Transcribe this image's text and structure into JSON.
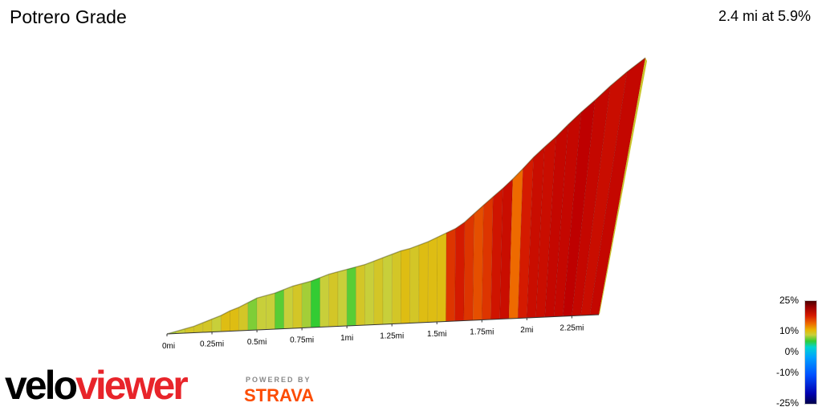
{
  "title": "Potrero Grade",
  "summary": "2.4 mi at 5.9%",
  "chart_data": {
    "type": "area",
    "title": "",
    "xlabel": "",
    "ylabel": "",
    "x_ticks": [
      "0mi",
      "0.25mi",
      "0.5mi",
      "0.75mi",
      "1mi",
      "1.25mi",
      "1.5mi",
      "1.75mi",
      "2mi",
      "2.25mi"
    ],
    "x": [
      0,
      0.05,
      0.1,
      0.15,
      0.2,
      0.25,
      0.3,
      0.35,
      0.4,
      0.45,
      0.5,
      0.55,
      0.6,
      0.65,
      0.7,
      0.75,
      0.8,
      0.85,
      0.9,
      0.95,
      1.0,
      1.05,
      1.1,
      1.15,
      1.2,
      1.25,
      1.3,
      1.35,
      1.4,
      1.45,
      1.5,
      1.55,
      1.6,
      1.65,
      1.7,
      1.75,
      1.8,
      1.85,
      1.9,
      1.95,
      2.0,
      2.05,
      2.1,
      2.15,
      2.2,
      2.25,
      2.3,
      2.35,
      2.4
    ],
    "elevation": [
      0,
      2,
      4,
      6,
      9,
      12,
      15,
      19,
      22,
      26,
      30,
      32,
      34,
      37,
      40,
      42,
      44,
      47,
      50,
      52,
      54,
      56,
      58,
      61,
      64,
      67,
      70,
      72,
      75,
      78,
      82,
      86,
      90,
      96,
      104,
      112,
      120,
      128,
      137,
      147,
      158,
      168,
      178,
      190,
      202,
      214,
      228,
      242,
      256
    ],
    "grade_percent": [
      3,
      4,
      5,
      5,
      5,
      4,
      6,
      6,
      5,
      2,
      4,
      4,
      1,
      4,
      5,
      3,
      0,
      4,
      5,
      4,
      1,
      5,
      4,
      5,
      4,
      5,
      6,
      5,
      6,
      6,
      6,
      14,
      15,
      14,
      13,
      14,
      16,
      17,
      12,
      15,
      17,
      17,
      18,
      18,
      19,
      18,
      17,
      18,
      7
    ],
    "legend": {
      "title": "",
      "labels": [
        "25%",
        "10%",
        "0%",
        "-10%",
        "-25%"
      ],
      "values": [
        25,
        10,
        0,
        -10,
        -25
      ]
    }
  },
  "brand": {
    "part1": "velo",
    "part2": "viewer",
    "powered_by": "POWERED BY",
    "partner": "STRAVA"
  },
  "colors": {
    "brand_red": "#e8242a",
    "strava_orange": "#fc4c02"
  }
}
